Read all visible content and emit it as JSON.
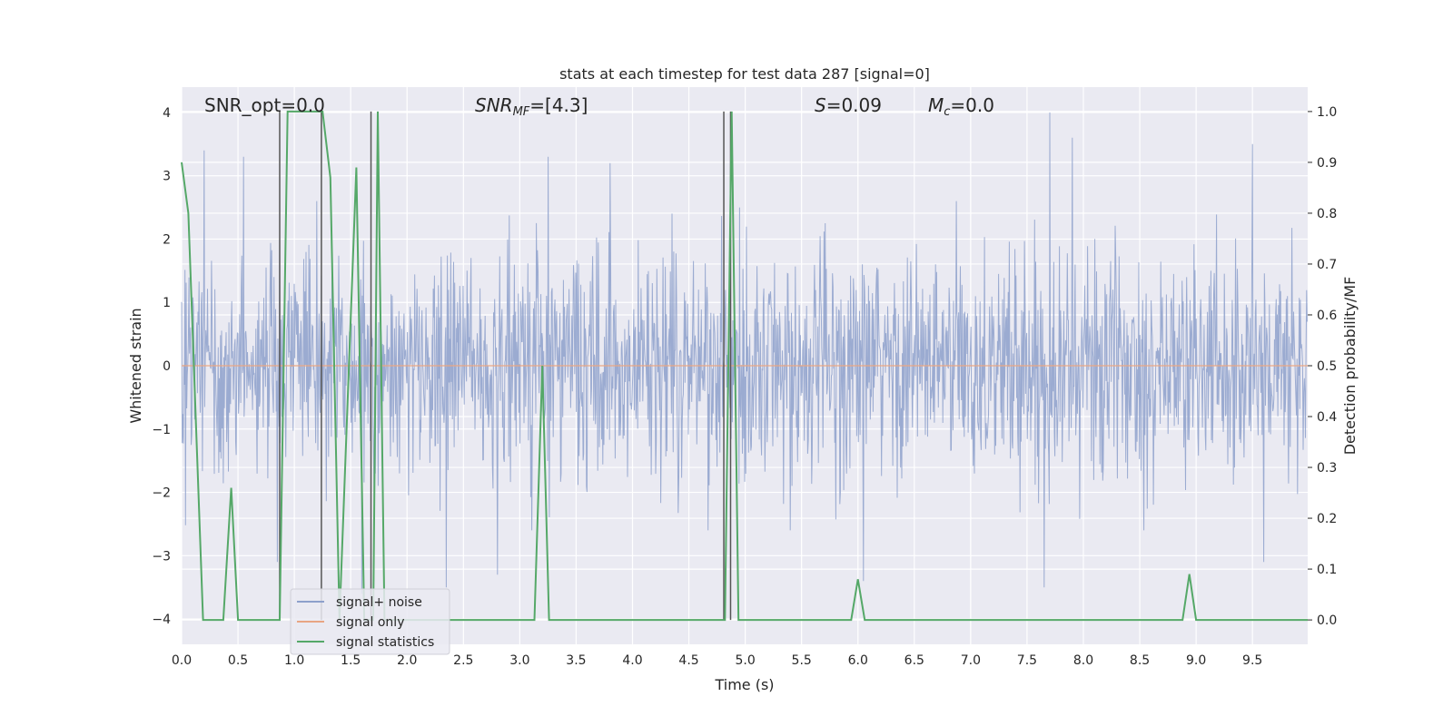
{
  "chart_data": {
    "type": "line",
    "title": "stats at each timestep for test data 287 [signal=0]",
    "xlabel": "Time (s)",
    "ylabel": "Whitened strain",
    "y2label": "Detection probability/MF",
    "xlim": [
      0.0,
      9.99
    ],
    "ylim": [
      -4.4,
      4.4
    ],
    "y2lim": [
      -0.048,
      1.048
    ],
    "xticks": [
      "0.0",
      "0.5",
      "1.0",
      "1.5",
      "2.0",
      "2.5",
      "3.0",
      "3.5",
      "4.0",
      "4.5",
      "5.0",
      "5.5",
      "6.0",
      "6.5",
      "7.0",
      "7.5",
      "8.0",
      "8.5",
      "9.0",
      "9.5"
    ],
    "yticks": [
      "4",
      "3",
      "2",
      "1",
      "0",
      "−1",
      "−2",
      "−3",
      "−4"
    ],
    "y2ticks": [
      "1.0",
      "0.9",
      "0.8",
      "0.7",
      "0.6",
      "0.5",
      "0.4",
      "0.3",
      "0.2",
      "0.1",
      "0.0"
    ],
    "grid": true,
    "legend_position": "lower-left",
    "annotations": {
      "snr_opt": "SNR_opt=0.0",
      "snr_mf_label": "SNR",
      "snr_mf_sub": "MF",
      "snr_mf_value": "=[4.3]",
      "s_label": "S",
      "s_value": "=0.09",
      "mc_label": "M",
      "mc_sub": "c",
      "mc_value": "=0.0"
    },
    "series": [
      {
        "name": "signal+ noise",
        "color": "#8da0cb",
        "description_values": "whitened noise, dense",
        "envelope_typical": [
          -1.6,
          1.6
        ],
        "spikes": [
          {
            "x": 0.2,
            "y": 3.4
          },
          {
            "x": 0.55,
            "y": 3.3
          },
          {
            "x": 0.85,
            "y": -3.1
          },
          {
            "x": 2.35,
            "y": -3.5
          },
          {
            "x": 2.8,
            "y": -3.3
          },
          {
            "x": 3.8,
            "y": 3.2
          },
          {
            "x": 4.95,
            "y": 2.5
          },
          {
            "x": 6.05,
            "y": -3.4
          },
          {
            "x": 7.7,
            "y": 4.0
          },
          {
            "x": 7.65,
            "y": -3.5
          },
          {
            "x": 7.9,
            "y": 3.6
          },
          {
            "x": 9.5,
            "y": 3.5
          },
          {
            "x": 9.6,
            "y": -3.1
          },
          {
            "x": 1.6,
            "y": -3.6
          },
          {
            "x": 3.25,
            "y": 3.3
          }
        ]
      },
      {
        "name": "signal only",
        "color": "#e8a583",
        "x": [
          0.0,
          9.99
        ],
        "y": [
          0.0,
          0.0
        ]
      },
      {
        "name": "signal statistics",
        "color": "#55a868",
        "x": [
          0.0,
          0.06,
          0.19,
          0.37,
          0.44,
          0.5,
          0.87,
          0.94,
          1.25,
          1.32,
          1.4,
          1.55,
          1.62,
          1.7,
          1.74,
          1.8,
          3.13,
          3.2,
          3.26,
          4.82,
          4.88,
          4.94,
          5.94,
          6.0,
          6.06,
          8.88,
          8.94,
          9.0,
          9.99
        ],
        "y": [
          0.9,
          0.8,
          0.0,
          0.0,
          0.26,
          0.0,
          0.0,
          1.0,
          1.0,
          0.87,
          0.0,
          0.89,
          0.0,
          0.0,
          1.0,
          0.0,
          0.0,
          0.5,
          0.0,
          0.0,
          1.0,
          0.0,
          0.0,
          0.08,
          0.0,
          0.0,
          0.09,
          0.0,
          0.0
        ]
      }
    ],
    "vertical_markers_x": [
      0.87,
      1.24,
      1.68,
      4.81,
      4.87
    ]
  }
}
